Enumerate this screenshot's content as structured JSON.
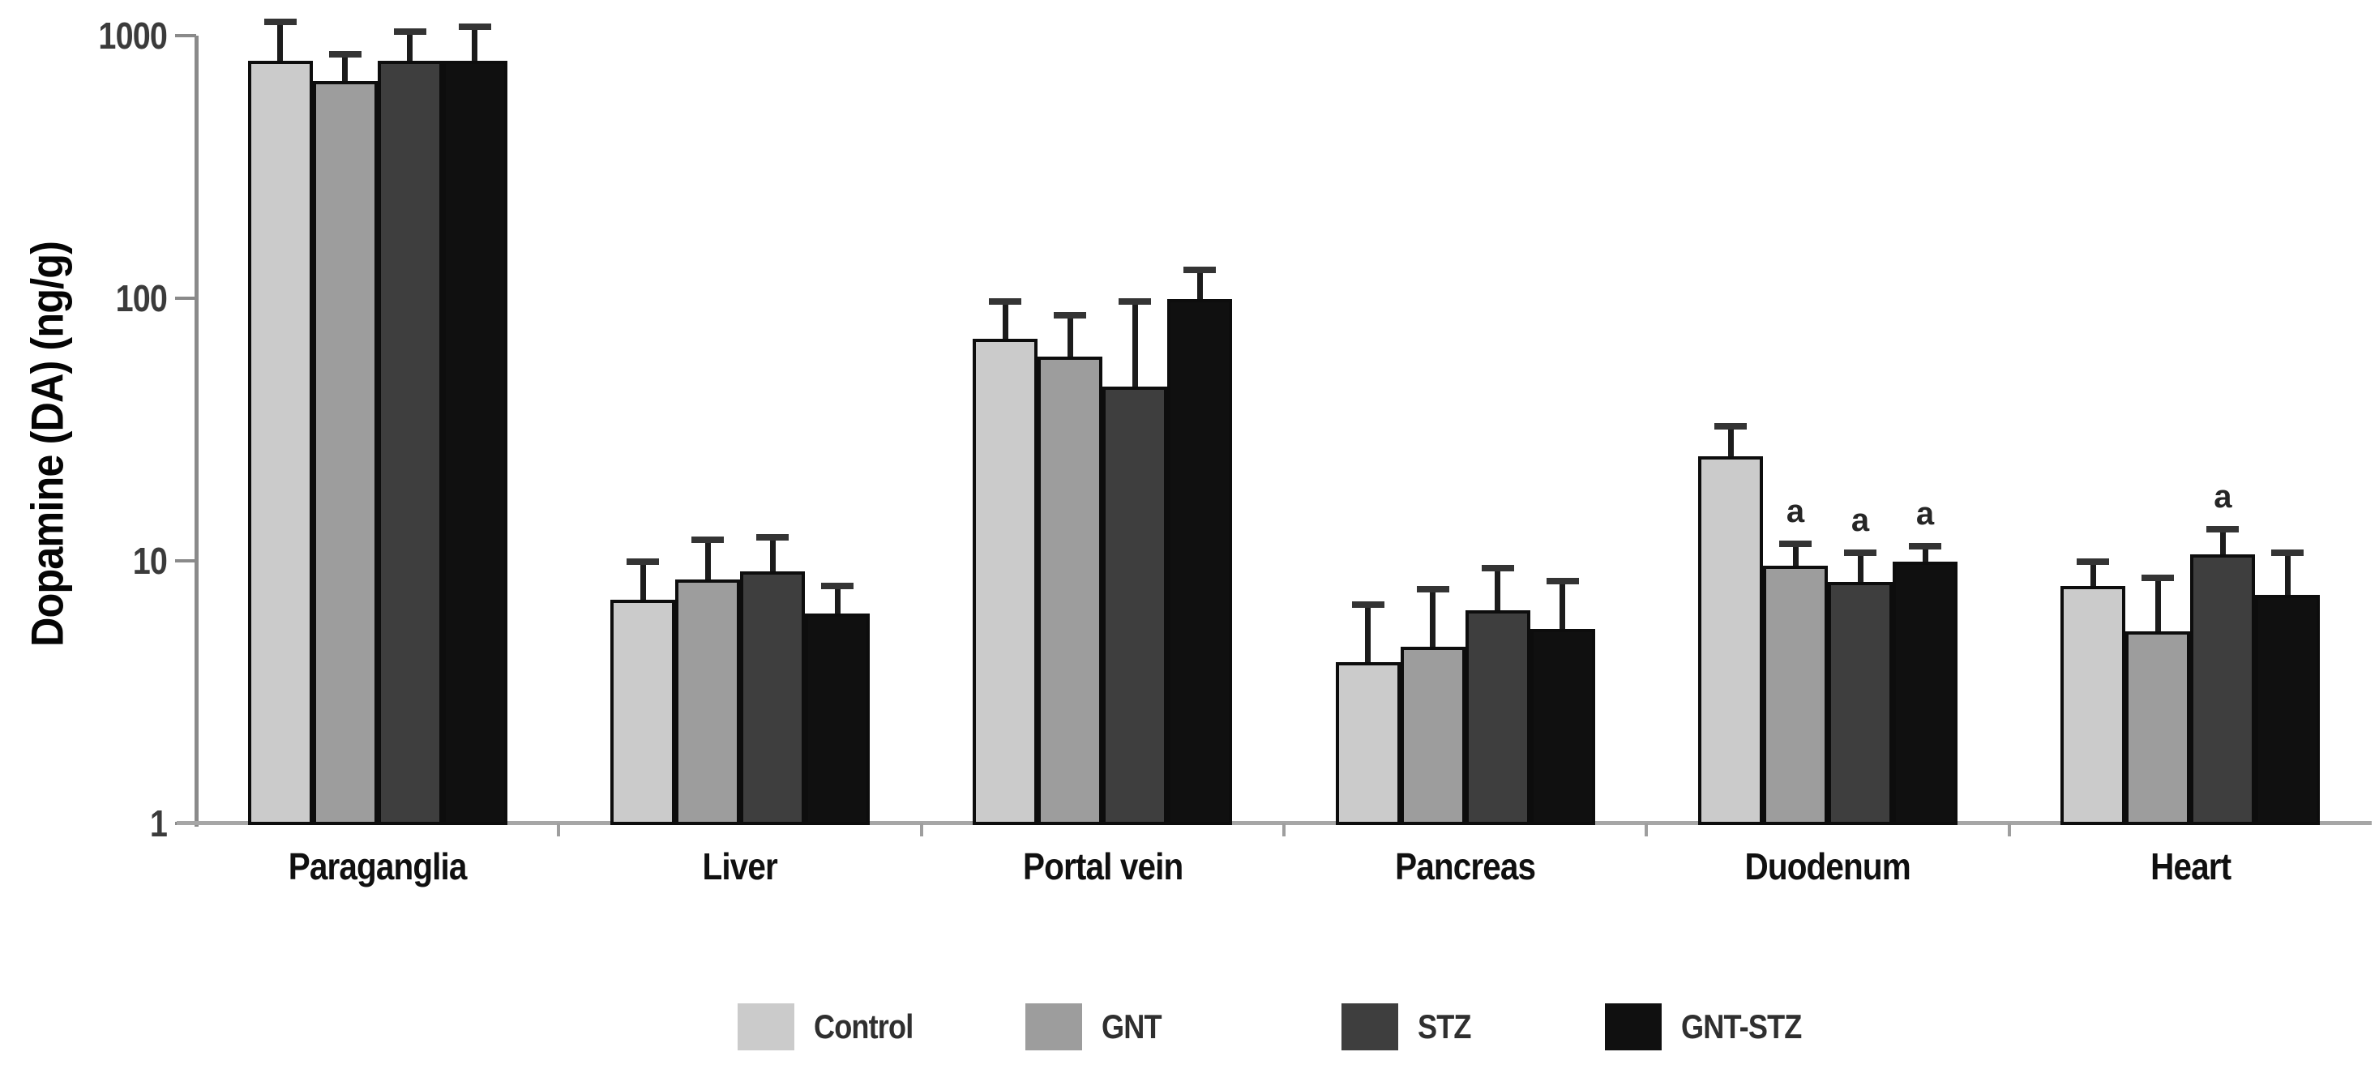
{
  "figure": {
    "y_axis_title": "Dopamine (DA) (ng/g)"
  },
  "colors": {
    "control": "#cbcbcb",
    "gnt": "#9d9d9d",
    "stz": "#3e3e3e",
    "gnt_stz": "#101010",
    "axis": "#8a8a8a",
    "baseline": "#a6a6a6",
    "tick_label": "#3b3b3b",
    "error_bar": "#1c1c1c"
  },
  "chart_data": {
    "type": "bar",
    "scale": "log",
    "title": "",
    "xlabel": "",
    "ylabel": "Dopamine (DA) (ng/g)",
    "ylim": [
      1,
      1000
    ],
    "yticks": [
      1,
      10,
      100,
      1000
    ],
    "ytick_labels": [
      "1",
      "10",
      "100",
      "1000"
    ],
    "grid": false,
    "legend_position": "bottom",
    "categories": [
      "Paraganglia",
      "Liver",
      "Portal vein",
      "Pancreas",
      "Duodenum",
      "Heart"
    ],
    "series": [
      {
        "name": "Control",
        "color": "#cbcbcb",
        "values": [
          800,
          7.1,
          70,
          4.1,
          25,
          8.0
        ],
        "error_high": [
          1130,
          9.9,
          97,
          6.8,
          32.5,
          9.9
        ],
        "annotations": [
          "",
          "",
          "",
          "",
          "",
          ""
        ]
      },
      {
        "name": "GNT",
        "color": "#9d9d9d",
        "values": [
          670,
          8.5,
          60,
          4.7,
          9.6,
          5.4
        ],
        "error_high": [
          850,
          12.0,
          86,
          7.8,
          11.6,
          8.6
        ],
        "annotations": [
          "",
          "",
          "",
          "",
          "a",
          ""
        ]
      },
      {
        "name": "STZ",
        "color": "#3e3e3e",
        "values": [
          800,
          9.1,
          46,
          6.5,
          8.3,
          10.6
        ],
        "error_high": [
          1035,
          12.3,
          97,
          9.4,
          10.7,
          13.2
        ],
        "annotations": [
          "",
          "",
          "",
          "",
          "a",
          "a"
        ]
      },
      {
        "name": "GNT-STZ",
        "color": "#101010",
        "values": [
          805,
          6.3,
          99,
          5.5,
          9.9,
          7.4
        ],
        "error_high": [
          1080,
          8.0,
          128,
          8.4,
          11.4,
          10.7
        ],
        "annotations": [
          "",
          "",
          "",
          "",
          "a",
          ""
        ]
      }
    ],
    "legend": [
      "Control",
      "GNT",
      "STZ",
      "GNT-STZ"
    ]
  }
}
